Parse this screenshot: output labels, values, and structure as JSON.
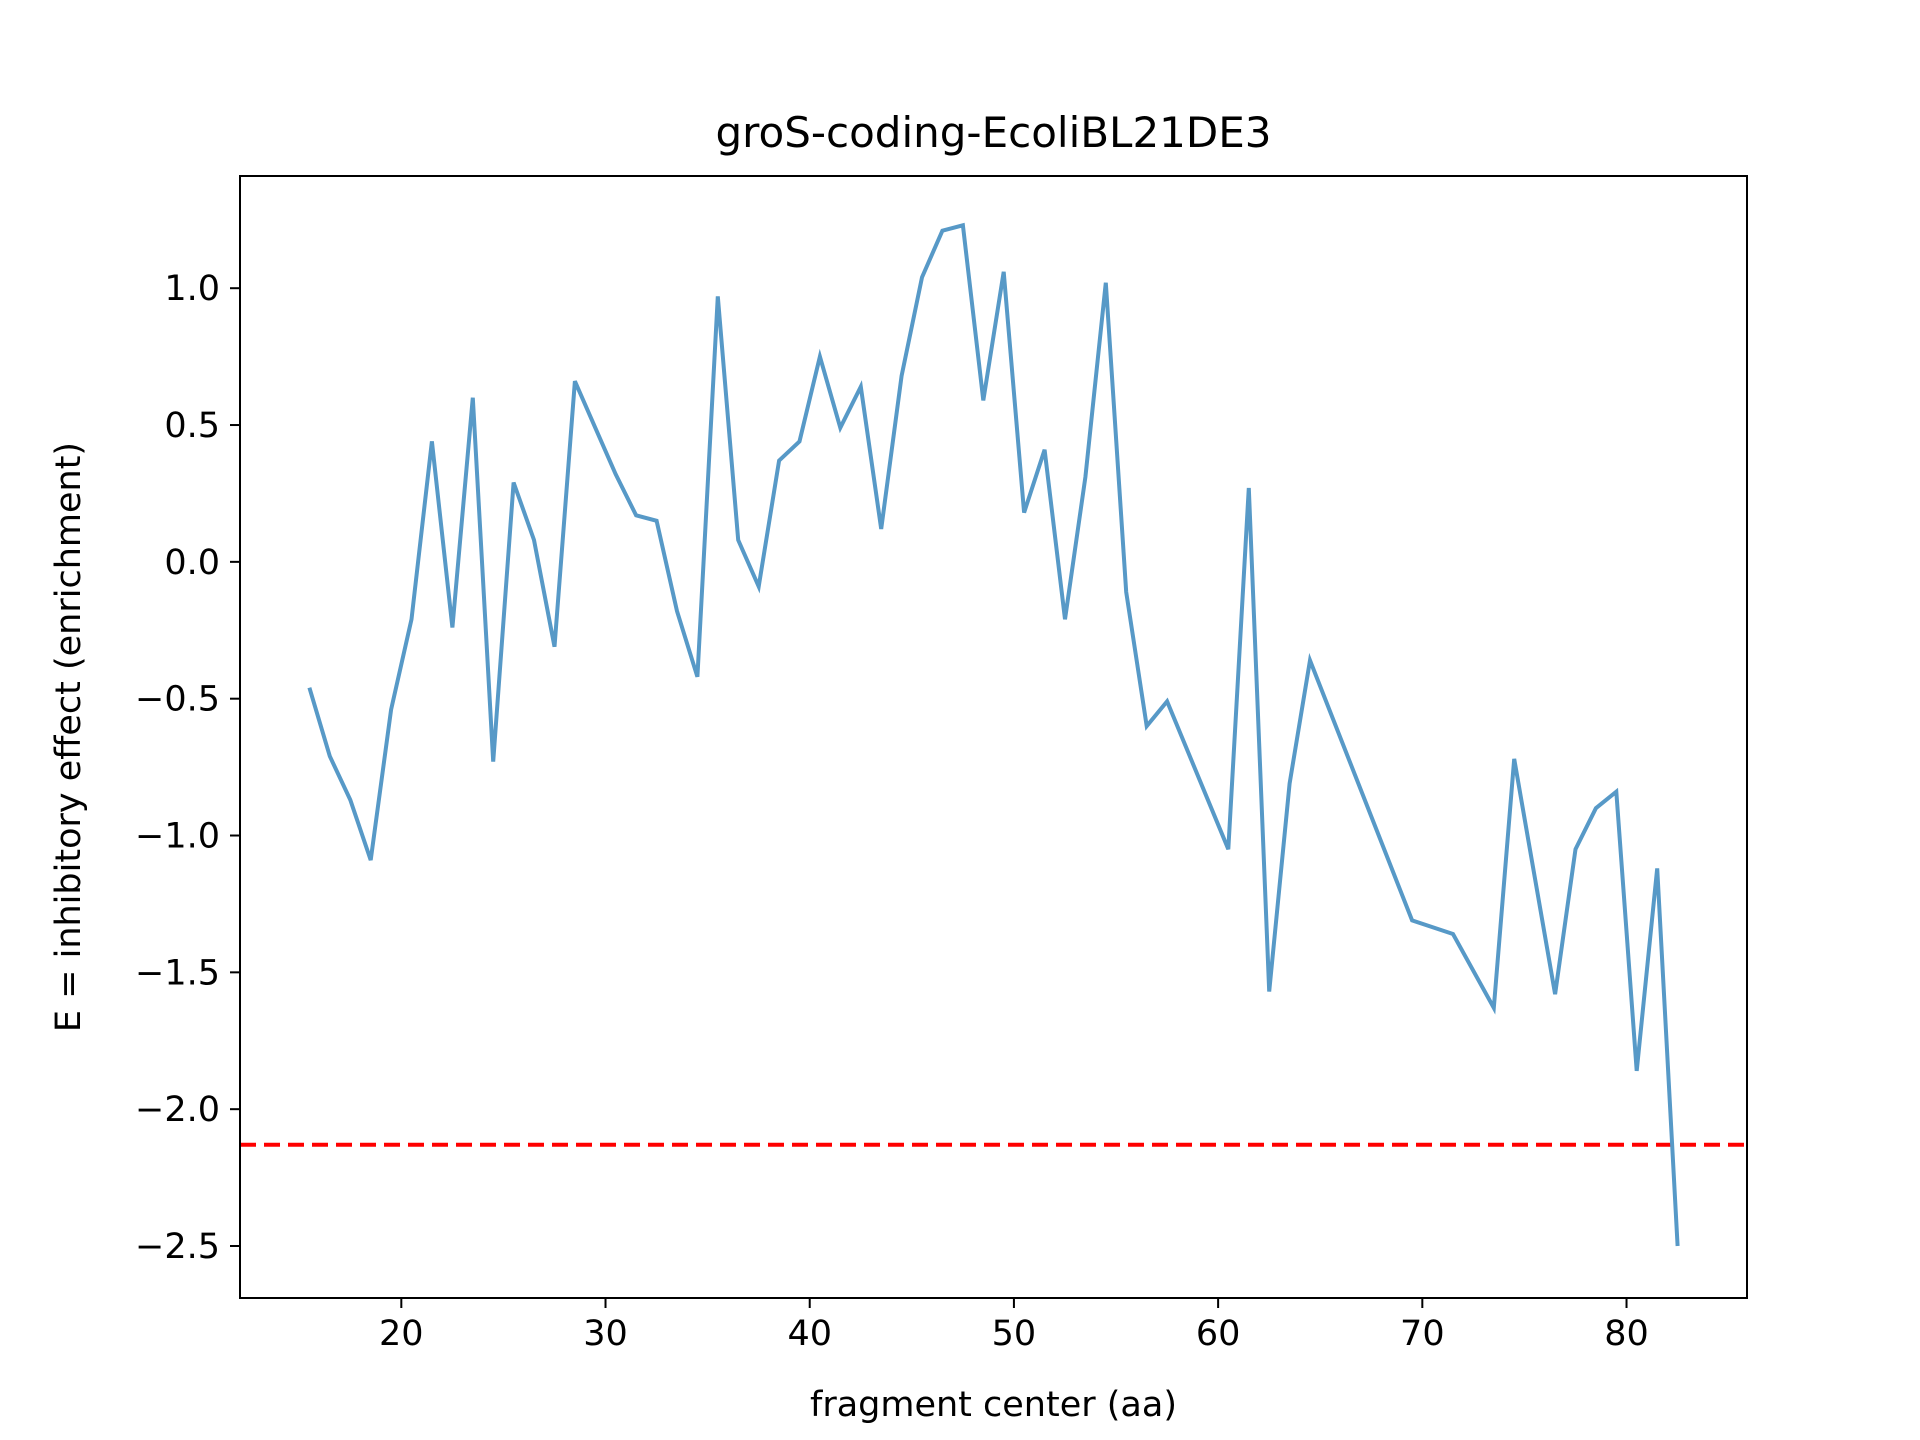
{
  "chart_data": {
    "type": "line",
    "title": "groS-coding-EcoliBL21DE3",
    "xlabel": "fragment center (aa)",
    "ylabel": "E = inhibitory effect (enrichment)",
    "xlim": [
      12.1,
      85.9
    ],
    "ylim": [
      -2.69,
      1.41
    ],
    "xticks": [
      20,
      30,
      40,
      50,
      60,
      70,
      80
    ],
    "xtick_labels": [
      "20",
      "30",
      "40",
      "50",
      "60",
      "70",
      "80"
    ],
    "yticks": [
      1.0,
      0.5,
      0.0,
      -0.5,
      -1.0,
      -1.5,
      -2.0,
      -2.5
    ],
    "ytick_labels": [
      "1.0",
      "0.5",
      "0.0",
      "−0.5",
      "−1.0",
      "−1.5",
      "−2.0",
      "−2.5"
    ],
    "grid": false,
    "series": [
      {
        "color": "#5799c7",
        "x": [
          15.5,
          16.5,
          17.5,
          18.5,
          19.5,
          20.5,
          21.5,
          22.5,
          23.5,
          24.5,
          25.5,
          26.5,
          27.5,
          28.5,
          29.5,
          30.5,
          31.5,
          32.5,
          33.5,
          34.5,
          35.5,
          36.5,
          37.5,
          38.5,
          39.5,
          40.5,
          41.5,
          42.5,
          43.5,
          44.5,
          45.5,
          46.5,
          47.5,
          48.5,
          49.5,
          50.5,
          51.5,
          52.5,
          53.5,
          54.5,
          55.5,
          56.5,
          57.5,
          60.5,
          61.5,
          62.5,
          63.5,
          64.5,
          69.5,
          71.5,
          73.5,
          74.5,
          76.5,
          77.5,
          78.5,
          79.5,
          80.5,
          81.5,
          82.5
        ],
        "y": [
          -0.46,
          -0.71,
          -0.87,
          -1.09,
          -0.54,
          -0.21,
          0.44,
          -0.24,
          0.6,
          -0.73,
          0.29,
          0.08,
          -0.31,
          0.66,
          0.49,
          0.32,
          0.17,
          0.15,
          -0.18,
          -0.42,
          0.97,
          0.08,
          -0.09,
          0.37,
          0.44,
          0.75,
          0.49,
          0.64,
          0.12,
          0.68,
          1.04,
          1.21,
          1.23,
          0.59,
          1.06,
          0.18,
          0.41,
          -0.21,
          0.31,
          1.02,
          -0.11,
          -0.6,
          -0.51,
          -1.05,
          0.27,
          -1.57,
          -0.81,
          -0.36,
          -1.31,
          -1.36,
          -1.63,
          -0.72,
          -1.58,
          -1.05,
          -0.9,
          -0.84,
          -1.86,
          -1.12,
          -2.5
        ]
      }
    ],
    "reference_line": {
      "y": -2.13,
      "color": "#ff0000",
      "style": "dashed"
    }
  }
}
